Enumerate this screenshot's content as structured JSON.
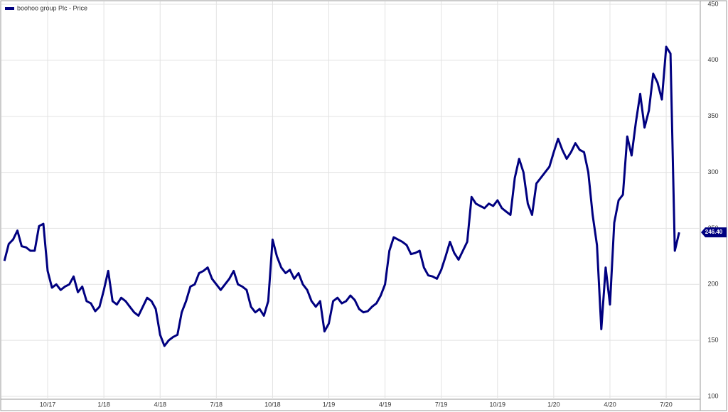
{
  "chart_data": {
    "type": "line",
    "categories": [
      null,
      null,
      null,
      null,
      null,
      null,
      null,
      null,
      null,
      null,
      "10/17",
      null,
      null,
      null,
      null,
      null,
      null,
      null,
      null,
      null,
      null,
      null,
      null,
      "1/18",
      null,
      null,
      null,
      null,
      null,
      null,
      null,
      null,
      null,
      null,
      null,
      null,
      "4/18",
      null,
      null,
      null,
      null,
      null,
      null,
      null,
      null,
      null,
      null,
      null,
      null,
      "7/18",
      null,
      null,
      null,
      null,
      null,
      null,
      null,
      null,
      null,
      null,
      null,
      null,
      "10/18",
      null,
      null,
      null,
      null,
      null,
      null,
      null,
      null,
      null,
      null,
      null,
      null,
      "1/19",
      null,
      null,
      null,
      null,
      null,
      null,
      null,
      null,
      null,
      null,
      null,
      null,
      "4/19",
      null,
      null,
      null,
      null,
      null,
      null,
      null,
      null,
      null,
      null,
      null,
      null,
      "7/19",
      null,
      null,
      null,
      null,
      null,
      null,
      null,
      null,
      null,
      null,
      null,
      null,
      "10/19",
      null,
      null,
      null,
      null,
      null,
      null,
      null,
      null,
      null,
      null,
      null,
      null,
      "1/20",
      null,
      null,
      null,
      null,
      null,
      null,
      null,
      null,
      null,
      null,
      null,
      null,
      "4/20",
      null,
      null,
      null,
      null,
      null,
      null,
      null,
      null,
      null,
      null,
      null,
      null,
      "7/20",
      null,
      null,
      null
    ],
    "series": [
      {
        "name": "boohoo group Plc - Price",
        "color": "#000080",
        "values": [
          221,
          236,
          240,
          248,
          234,
          233,
          230,
          230,
          252,
          254,
          212,
          197,
          200,
          195,
          198,
          200,
          207,
          193,
          198,
          185,
          183,
          176,
          180,
          195,
          212,
          185,
          182,
          188,
          185,
          180,
          175,
          172,
          180,
          188,
          185,
          178,
          155,
          145,
          150,
          153,
          155,
          175,
          185,
          198,
          200,
          210,
          212,
          215,
          205,
          200,
          195,
          200,
          205,
          212,
          200,
          198,
          195,
          180,
          175,
          178,
          172,
          185,
          240,
          225,
          215,
          210,
          213,
          205,
          210,
          200,
          195,
          185,
          180,
          185,
          158,
          165,
          185,
          188,
          183,
          185,
          190,
          186,
          178,
          175,
          176,
          180,
          183,
          190,
          200,
          230,
          242,
          240,
          238,
          235,
          227,
          228,
          230,
          215,
          208,
          207,
          205,
          213,
          225,
          238,
          228,
          222,
          230,
          238,
          278,
          272,
          270,
          268,
          272,
          270,
          275,
          268,
          265,
          262,
          295,
          312,
          300,
          272,
          262,
          290,
          295,
          300,
          305,
          318,
          330,
          320,
          312,
          318,
          326,
          320,
          318,
          300,
          262,
          235,
          160,
          215,
          182,
          255,
          275,
          280,
          332,
          315,
          345,
          370,
          340,
          355,
          388,
          380,
          365,
          412,
          406,
          230,
          246.4
        ],
        "value_labels": [
          null,
          null,
          null,
          null,
          null,
          null,
          null,
          null,
          null,
          null,
          null,
          null,
          null,
          null,
          null,
          null,
          null,
          null,
          null,
          null,
          null,
          null,
          null,
          null,
          null,
          null,
          null,
          null,
          null,
          null,
          null,
          null,
          null,
          null,
          null,
          null,
          null,
          null,
          null,
          null,
          null,
          null,
          null,
          null,
          null,
          null,
          null,
          null,
          null,
          null,
          null,
          null,
          null,
          null,
          null,
          null,
          null,
          null,
          null,
          null,
          null,
          null,
          null,
          null,
          null,
          null,
          null,
          null,
          null,
          null,
          null,
          null,
          null,
          null,
          null,
          null,
          null,
          null,
          null,
          null,
          null,
          null,
          null,
          null,
          null,
          null,
          null,
          null,
          null,
          null,
          null,
          null,
          null,
          null,
          null,
          null,
          null,
          null,
          null,
          null,
          null,
          null,
          null,
          null,
          null,
          null,
          null,
          null,
          null,
          null,
          null,
          null,
          null,
          null,
          null,
          null,
          null,
          null,
          null,
          null,
          null,
          null,
          null,
          null,
          null,
          null,
          null,
          null,
          null,
          null,
          null,
          null,
          null,
          null,
          null,
          null,
          null,
          null,
          null,
          null,
          null,
          null,
          null,
          null,
          null,
          null,
          null,
          null,
          null,
          null,
          null,
          null,
          null,
          null,
          null,
          null,
          "246.40"
        ]
      }
    ],
    "ylim": [
      100,
      450
    ],
    "yticks": [
      100,
      150,
      200,
      250,
      300,
      350,
      400,
      450
    ],
    "grid": true,
    "legend": "top-left"
  }
}
